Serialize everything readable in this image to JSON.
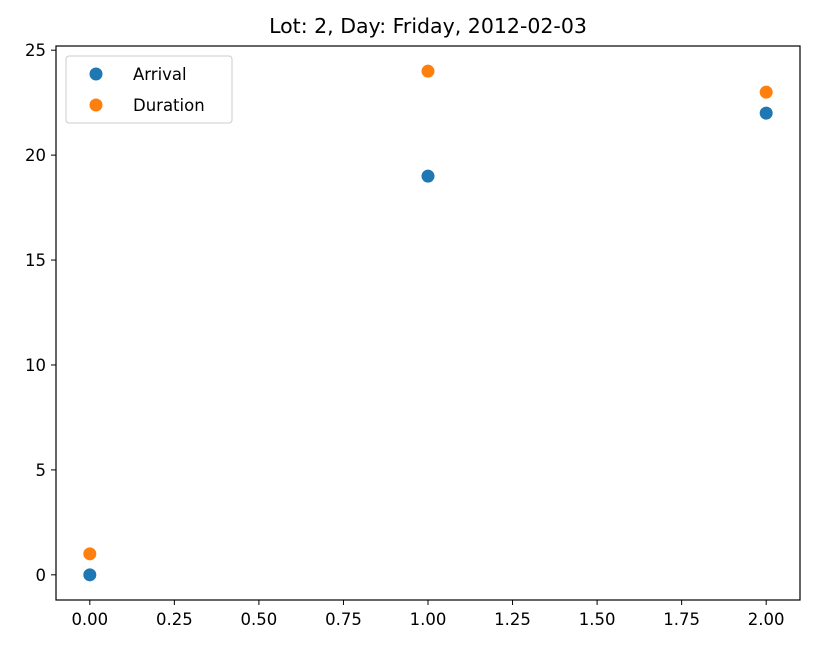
{
  "chart_data": {
    "type": "scatter",
    "title": "Lot: 2, Day: Friday, 2012-02-03",
    "xlabel": "",
    "ylabel": "",
    "xlim": [
      -0.1,
      2.1
    ],
    "ylim": [
      -1.2,
      25.2
    ],
    "xticks": [
      0.0,
      0.25,
      0.5,
      0.75,
      1.0,
      1.25,
      1.5,
      1.75,
      2.0
    ],
    "xtick_labels": [
      "0.00",
      "0.25",
      "0.50",
      "0.75",
      "1.00",
      "1.25",
      "1.50",
      "1.75",
      "2.00"
    ],
    "yticks": [
      0,
      5,
      10,
      15,
      20,
      25
    ],
    "ytick_labels": [
      "0",
      "5",
      "10",
      "15",
      "20",
      "25"
    ],
    "grid": false,
    "legend_position": "upper-left",
    "series": [
      {
        "name": "Arrival",
        "color": "#1f77b4",
        "x": [
          0,
          1,
          2
        ],
        "y": [
          0,
          19,
          22
        ]
      },
      {
        "name": "Duration",
        "color": "#ff7f0e",
        "x": [
          0,
          1,
          2
        ],
        "y": [
          1,
          24,
          23
        ]
      }
    ]
  }
}
